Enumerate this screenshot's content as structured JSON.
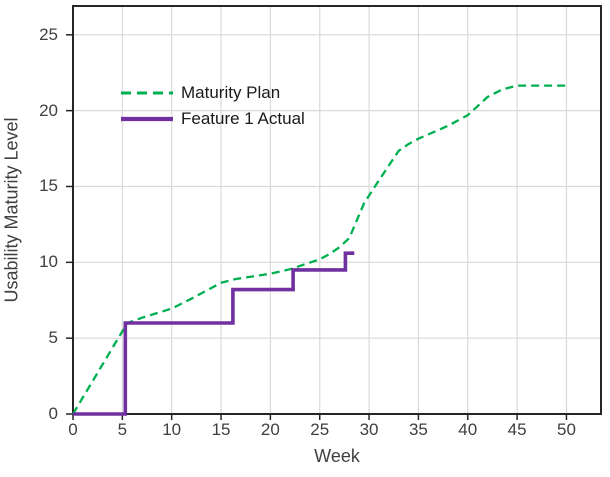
{
  "chart_data": {
    "type": "line",
    "title": "",
    "xlabel": "Week",
    "ylabel": "Usability Maturity Level",
    "x_ticks": [
      0,
      5,
      10,
      15,
      20,
      25,
      30,
      35,
      40,
      45,
      50
    ],
    "y_ticks": [
      0,
      5,
      10,
      15,
      20,
      25
    ],
    "xlim": [
      0,
      53.5
    ],
    "ylim": [
      0,
      26.9
    ],
    "grid": true,
    "legend_position": "inside-top-left",
    "series": [
      {
        "name": "Maturity Plan",
        "color": "#00B050",
        "line_style": "dashed",
        "points": [
          [
            0,
            0
          ],
          [
            5.5,
            6.0
          ],
          [
            7,
            6.35
          ],
          [
            10,
            6.95
          ],
          [
            12,
            7.6
          ],
          [
            15,
            8.65
          ],
          [
            16.5,
            8.9
          ],
          [
            20,
            9.25
          ],
          [
            22,
            9.55
          ],
          [
            25,
            10.2
          ],
          [
            26,
            10.55
          ],
          [
            27,
            11.0
          ],
          [
            28,
            11.6
          ],
          [
            29.5,
            13.9
          ],
          [
            31,
            15.4
          ],
          [
            33,
            17.35
          ],
          [
            34,
            17.8
          ],
          [
            35,
            18.15
          ],
          [
            38,
            19.0
          ],
          [
            40,
            19.7
          ],
          [
            42,
            20.9
          ],
          [
            43.5,
            21.4
          ],
          [
            45,
            21.65
          ],
          [
            50,
            21.65
          ]
        ]
      },
      {
        "name": "Feature 1 Actual",
        "color": "#7030A0",
        "line_style": "solid",
        "points": [
          [
            0,
            0
          ],
          [
            5.3,
            0
          ],
          [
            5.3,
            6.0
          ],
          [
            16.2,
            6.0
          ],
          [
            16.2,
            8.2
          ],
          [
            22.3,
            8.2
          ],
          [
            22.3,
            9.5
          ],
          [
            27.6,
            9.5
          ],
          [
            27.6,
            10.6
          ],
          [
            28.5,
            10.6
          ]
        ]
      }
    ]
  },
  "colors": {
    "background": "#FFFFFF",
    "gridline": "#D9D9D9",
    "axis": "#262626",
    "tick_label": "#3F3F3F",
    "legend_text": "#1A1A1A"
  }
}
